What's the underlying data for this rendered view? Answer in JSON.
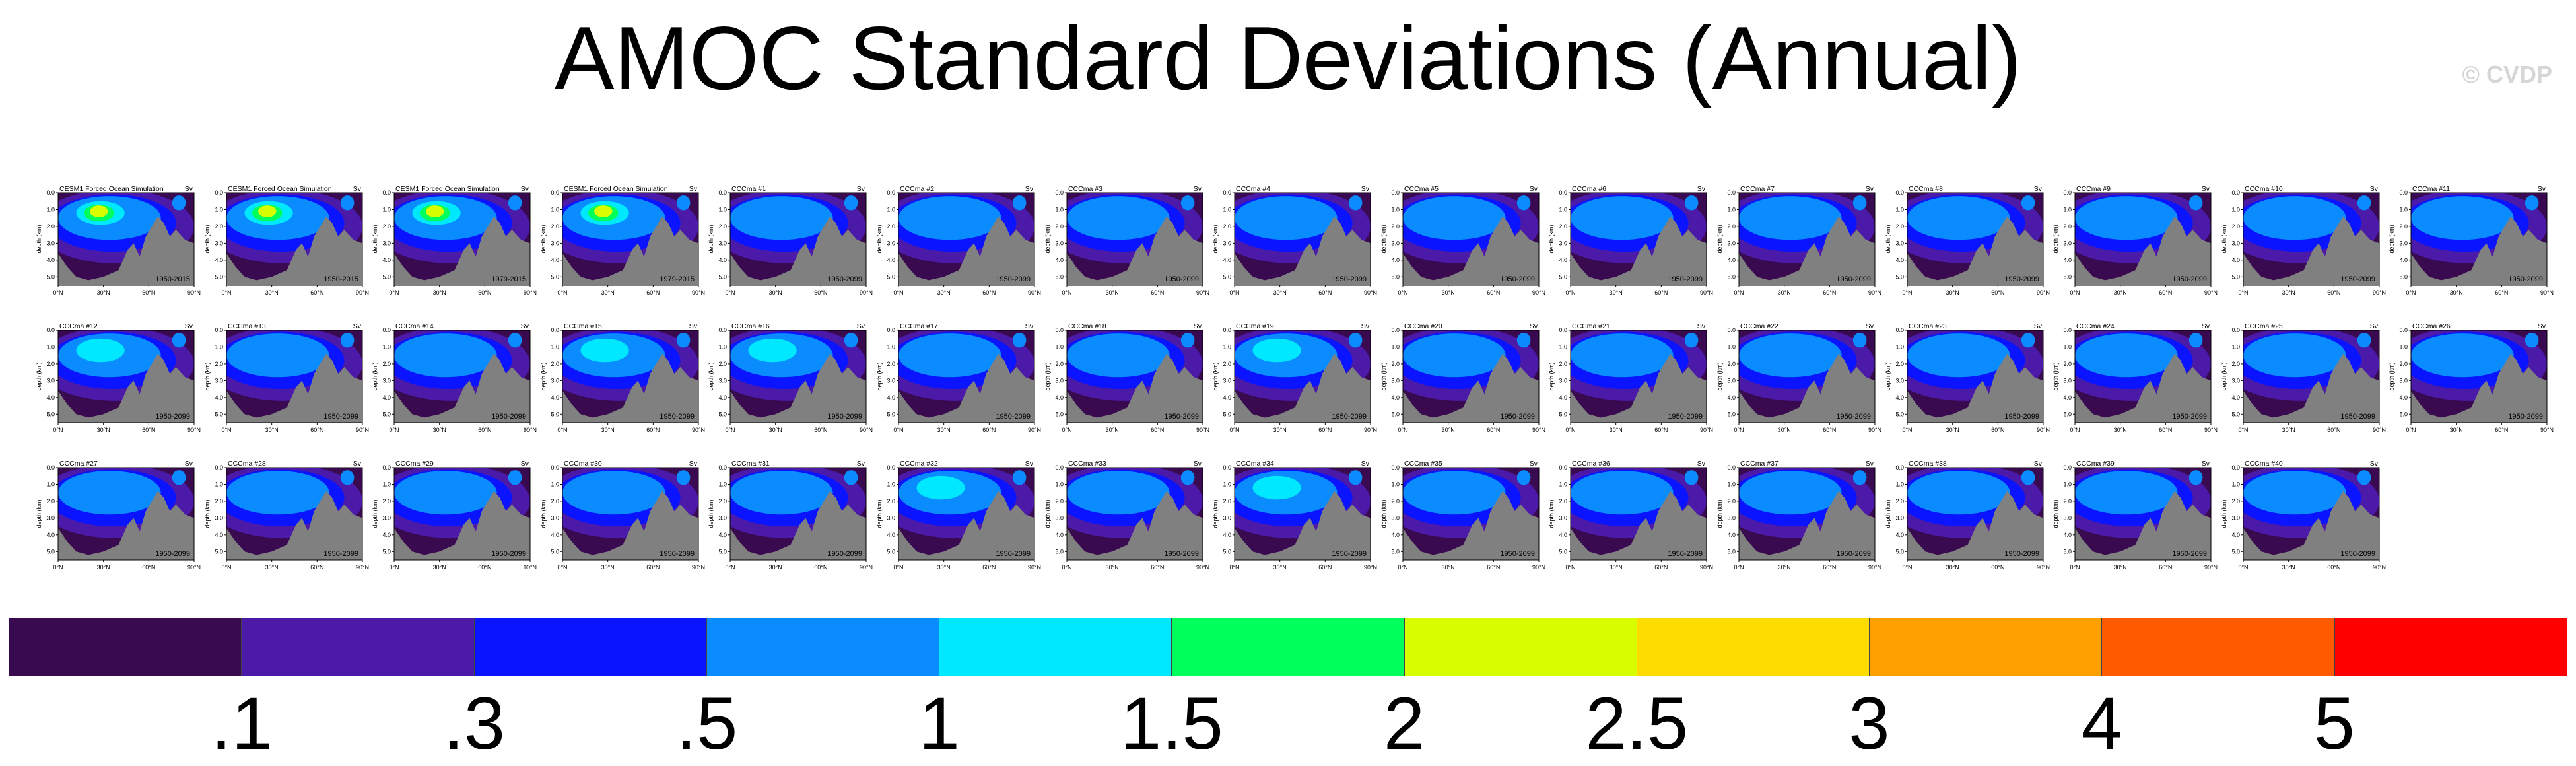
{
  "title": "AMOC Standard Deviations (Annual)",
  "credit": "© CVDP",
  "chart_data": {
    "type": "heatmap",
    "title": "AMOC Standard Deviations (Annual)",
    "panel_ylabel": "depth (km)",
    "panel_units": "Sv",
    "x_ticks": [
      "0°N",
      "30°N",
      "60°N",
      "90°N"
    ],
    "y_ticks": [
      "0.0",
      "1.0",
      "2.0",
      "3.0",
      "4.0",
      "5.0"
    ],
    "xlim": [
      0,
      90
    ],
    "ylim": [
      0,
      5.5
    ],
    "panels": [
      {
        "title": "CESM1 Forced Ocean Simulation",
        "years": "1950-2015",
        "peak_sv": 2.5
      },
      {
        "title": "CESM1 Forced Ocean Simulation",
        "years": "1950-2015",
        "peak_sv": 2.5
      },
      {
        "title": "CESM1 Forced Ocean Simulation",
        "years": "1979-2015",
        "peak_sv": 2.5
      },
      {
        "title": "CESM1 Forced Ocean Simulation",
        "years": "1979-2015",
        "peak_sv": 2.5
      },
      {
        "title": "CCCma #1",
        "years": "1950-2099",
        "peak_sv": 1.0
      },
      {
        "title": "CCCma #2",
        "years": "1950-2099",
        "peak_sv": 1.0
      },
      {
        "title": "CCCma #3",
        "years": "1950-2099",
        "peak_sv": 1.0
      },
      {
        "title": "CCCma #4",
        "years": "1950-2099",
        "peak_sv": 1.0
      },
      {
        "title": "CCCma #5",
        "years": "1950-2099",
        "peak_sv": 1.0
      },
      {
        "title": "CCCma #6",
        "years": "1950-2099",
        "peak_sv": 1.0
      },
      {
        "title": "CCCma #7",
        "years": "1950-2099",
        "peak_sv": 1.0
      },
      {
        "title": "CCCma #8",
        "years": "1950-2099",
        "peak_sv": 1.0
      },
      {
        "title": "CCCma #9",
        "years": "1950-2099",
        "peak_sv": 1.0
      },
      {
        "title": "CCCma #10",
        "years": "1950-2099",
        "peak_sv": 1.0
      },
      {
        "title": "CCCma #11",
        "years": "1950-2099",
        "peak_sv": 1.0
      },
      {
        "title": "CCCma #12",
        "years": "1950-2099",
        "peak_sv": 1.5
      },
      {
        "title": "CCCma #13",
        "years": "1950-2099",
        "peak_sv": 1.0
      },
      {
        "title": "CCCma #14",
        "years": "1950-2099",
        "peak_sv": 1.0
      },
      {
        "title": "CCCma #15",
        "years": "1950-2099",
        "peak_sv": 1.5
      },
      {
        "title": "CCCma #16",
        "years": "1950-2099",
        "peak_sv": 1.5
      },
      {
        "title": "CCCma #17",
        "years": "1950-2099",
        "peak_sv": 1.0
      },
      {
        "title": "CCCma #18",
        "years": "1950-2099",
        "peak_sv": 1.0
      },
      {
        "title": "CCCma #19",
        "years": "1950-2099",
        "peak_sv": 1.5
      },
      {
        "title": "CCCma #20",
        "years": "1950-2099",
        "peak_sv": 1.0
      },
      {
        "title": "CCCma #21",
        "years": "1950-2099",
        "peak_sv": 1.0
      },
      {
        "title": "CCCma #22",
        "years": "1950-2099",
        "peak_sv": 1.0
      },
      {
        "title": "CCCma #23",
        "years": "1950-2099",
        "peak_sv": 1.0
      },
      {
        "title": "CCCma #24",
        "years": "1950-2099",
        "peak_sv": 1.0
      },
      {
        "title": "CCCma #25",
        "years": "1950-2099",
        "peak_sv": 1.0
      },
      {
        "title": "CCCma #26",
        "years": "1950-2099",
        "peak_sv": 1.0
      },
      {
        "title": "CCCma #27",
        "years": "1950-2099",
        "peak_sv": 1.0
      },
      {
        "title": "CCCma #28",
        "years": "1950-2099",
        "peak_sv": 1.0
      },
      {
        "title": "CCCma #29",
        "years": "1950-2099",
        "peak_sv": 1.0
      },
      {
        "title": "CCCma #30",
        "years": "1950-2099",
        "peak_sv": 1.0
      },
      {
        "title": "CCCma #31",
        "years": "1950-2099",
        "peak_sv": 1.0
      },
      {
        "title": "CCCma #32",
        "years": "1950-2099",
        "peak_sv": 1.5
      },
      {
        "title": "CCCma #33",
        "years": "1950-2099",
        "peak_sv": 1.0
      },
      {
        "title": "CCCma #34",
        "years": "1950-2099",
        "peak_sv": 1.5
      },
      {
        "title": "CCCma #35",
        "years": "1950-2099",
        "peak_sv": 1.0
      },
      {
        "title": "CCCma #36",
        "years": "1950-2099",
        "peak_sv": 1.0
      },
      {
        "title": "CCCma #37",
        "years": "1950-2099",
        "peak_sv": 1.0
      },
      {
        "title": "CCCma #38",
        "years": "1950-2099",
        "peak_sv": 1.0
      },
      {
        "title": "CCCma #39",
        "years": "1950-2099",
        "peak_sv": 1.0
      },
      {
        "title": "CCCma #40",
        "years": "1950-2099",
        "peak_sv": 1.0
      }
    ],
    "colorbar": {
      "labels": [
        ".1",
        ".3",
        ".5",
        "1",
        "1.5",
        "2",
        "2.5",
        "3",
        "4",
        "5"
      ],
      "colors": [
        "#3a0a50",
        "#4b1aa8",
        "#0a14ff",
        "#0a8cff",
        "#00e8ff",
        "#00ff5a",
        "#d8ff00",
        "#ffdc00",
        "#ffa000",
        "#ff5a00",
        "#ff0000"
      ]
    },
    "land_color": "#808080"
  }
}
